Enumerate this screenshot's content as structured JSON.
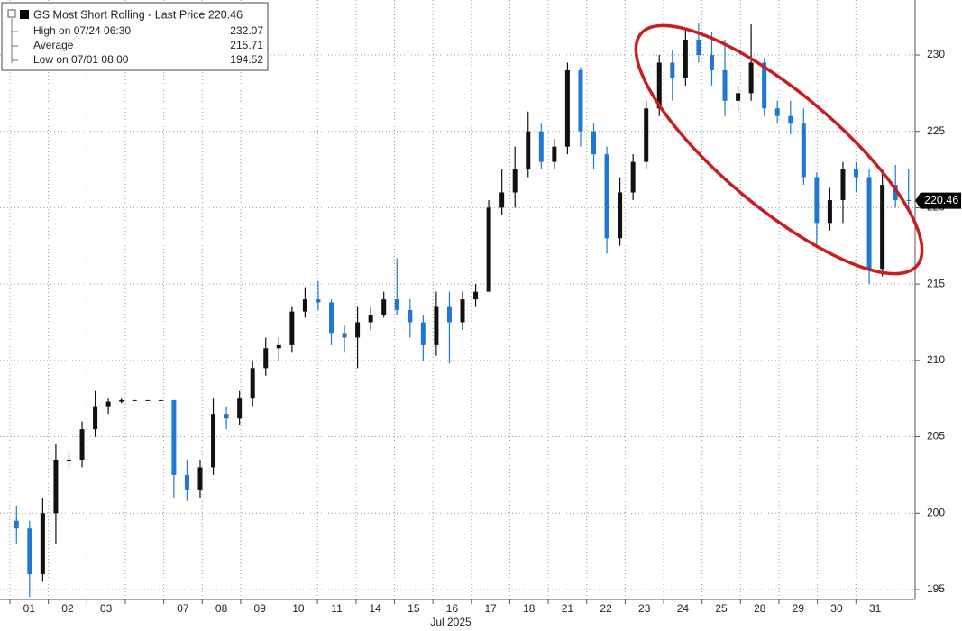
{
  "chart_data": {
    "type": "candlestick",
    "title": "GS Most Short Rolling - Last Price 220.46",
    "stats": [
      {
        "label": "High on 07/24 06:30",
        "value": 232.07
      },
      {
        "label": "Average",
        "value": 215.71
      },
      {
        "label": "Low on 07/01 08:00",
        "value": 194.52
      }
    ],
    "last_price": 220.46,
    "x_label": "Jul 2025",
    "categories": [
      "01",
      "02",
      "03",
      null,
      "07",
      "08",
      "09",
      "10",
      "11",
      "14",
      "15",
      "16",
      "17",
      "18",
      "21",
      "22",
      "23",
      "24",
      "25",
      "28",
      "29",
      "30",
      "31"
    ],
    "up_color": "#111111",
    "down_color": "#1e78d2",
    "candles": {
      "open": [
        199.5,
        199,
        196,
        200,
        203.5,
        203.5,
        205.5,
        207,
        207.3,
        207.4,
        207.4,
        207.4,
        207.4,
        202.5,
        201.5,
        203,
        206.5,
        206.2,
        207.5,
        209.5,
        210.8,
        211,
        213.2,
        214,
        213.8,
        211.8,
        211.5,
        212.5,
        213,
        214,
        213.3,
        212.5,
        211,
        213.5,
        212.5,
        214,
        214.5,
        220,
        221,
        222.5,
        225,
        223,
        224,
        229,
        225,
        223.5,
        218,
        221,
        223,
        226.5,
        229.5,
        228.5,
        231,
        230,
        229,
        227,
        227.5,
        229.5,
        226.5,
        226,
        225.5,
        222,
        219,
        220.5,
        222.5,
        222,
        216,
        221.5,
        220.5
      ],
      "high": [
        200.5,
        199.5,
        201,
        204.5,
        204,
        206,
        208,
        207.5,
        207.5,
        207.4,
        207.4,
        207.4,
        207.4,
        203.5,
        203.5,
        207.5,
        207,
        208,
        210,
        211.5,
        211.5,
        213.5,
        214.8,
        215.2,
        214,
        212.3,
        213.5,
        213.5,
        214.5,
        216.7,
        214,
        213,
        214.5,
        214.5,
        214.5,
        215,
        220.5,
        222.5,
        224,
        226.3,
        225.5,
        224.5,
        229.5,
        229.2,
        225.5,
        224,
        222,
        223.5,
        227,
        230,
        230.3,
        231.8,
        232.07,
        231.5,
        231,
        228,
        232,
        229.8,
        227,
        227,
        226.5,
        222.3,
        221.3,
        223,
        223,
        222.5,
        222.5,
        222.8,
        222.5
      ],
      "low": [
        198,
        194.52,
        195.5,
        198,
        203,
        203,
        205,
        206.5,
        207.2,
        207.4,
        207.4,
        207.4,
        201,
        200.8,
        201,
        202.5,
        205.5,
        205.8,
        207,
        209,
        210,
        210.5,
        212.8,
        213.3,
        211,
        210.5,
        209.5,
        212,
        212.8,
        213,
        211.5,
        210,
        210.3,
        209.8,
        212,
        213.5,
        214.5,
        219.5,
        220,
        222,
        222.5,
        222.5,
        223.5,
        224,
        222.5,
        217,
        217.5,
        220.5,
        222.5,
        226,
        227,
        228,
        229.5,
        228,
        226,
        226.3,
        227,
        226,
        225.5,
        224.8,
        221.5,
        217.5,
        218.5,
        219,
        221,
        215,
        215.5,
        220,
        220
      ],
      "close": [
        199,
        196,
        200,
        203.5,
        203.5,
        205.5,
        207,
        207.3,
        207.4,
        207.4,
        207.4,
        207.4,
        202.5,
        201.5,
        203,
        206.5,
        206.2,
        207.5,
        209.5,
        210.8,
        211,
        213.2,
        214,
        213.8,
        211.8,
        211.5,
        212.5,
        213,
        214,
        213.3,
        212.5,
        211,
        213.5,
        212.5,
        214,
        214.5,
        220,
        221,
        222.5,
        225,
        223,
        224,
        229,
        225,
        223.5,
        218,
        221,
        223,
        226.5,
        229.5,
        228.5,
        231,
        230,
        229,
        227,
        227.5,
        229.5,
        226.5,
        226,
        225.5,
        222,
        219,
        220.5,
        222.5,
        222,
        216,
        221.5,
        220.5,
        220.46
      ]
    },
    "ylim": [
      194.35,
      233.6
    ],
    "yticks": [
      195,
      200,
      205,
      210,
      215,
      220,
      225,
      230
    ],
    "grid": true
  }
}
